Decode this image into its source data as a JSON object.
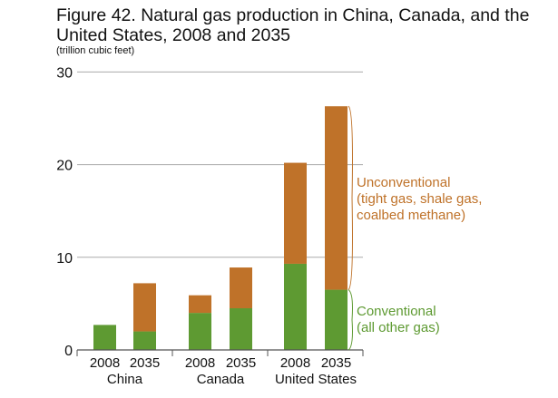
{
  "chart_data": {
    "type": "bar",
    "stacked": true,
    "title": "Figure 42. Natural gas production in China, Canada, and the United States, 2008 and 2035",
    "ylabel": "(trillion cubic feet)",
    "ylim": [
      0,
      30
    ],
    "yticks": [
      0,
      10,
      20,
      30
    ],
    "groups": [
      "China",
      "Canada",
      "United States"
    ],
    "categories": [
      "2008",
      "2035",
      "2008",
      "2035",
      "2008",
      "2035"
    ],
    "group_of": [
      0,
      0,
      1,
      1,
      2,
      2
    ],
    "series": [
      {
        "name": "Conventional (all other gas)",
        "lines": [
          "Conventional",
          "(all other gas)"
        ],
        "color": "#5e9a32",
        "values": [
          2.7,
          2.0,
          4.0,
          4.5,
          9.3,
          6.5
        ]
      },
      {
        "name": "Unconventional (tight gas, shale gas, coalbed methane)",
        "lines": [
          "Unconventional",
          "(tight gas, shale gas,",
          "coalbed methane)"
        ],
        "color": "#bf7229",
        "values": [
          0,
          5.2,
          1.9,
          4.4,
          10.9,
          19.8
        ]
      }
    ],
    "grid": true,
    "legend": "right"
  }
}
